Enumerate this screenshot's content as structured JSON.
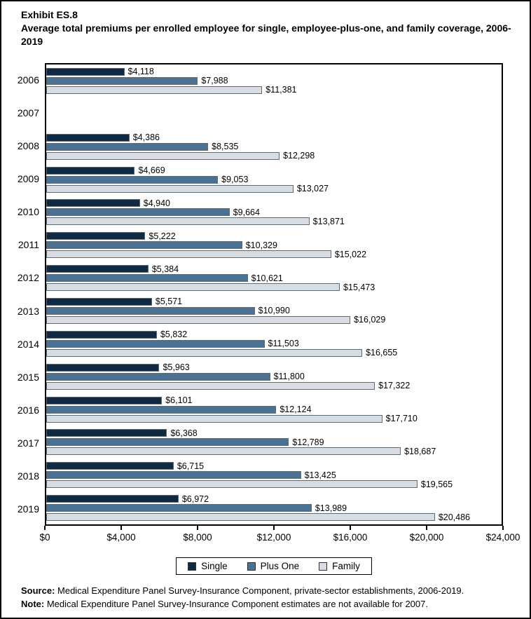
{
  "header": {
    "exhibit": "Exhibit ES.8",
    "title": "Average total premiums per enrolled employee for single, employee-plus-one, and family coverage, 2006-2019"
  },
  "chart_data": {
    "type": "bar",
    "orientation": "horizontal",
    "title": "Average total premiums per enrolled employee for single, employee-plus-one, and family coverage, 2006-2019",
    "categories": [
      "2006",
      "2007",
      "2008",
      "2009",
      "2010",
      "2011",
      "2012",
      "2013",
      "2014",
      "2015",
      "2016",
      "2017",
      "2018",
      "2019"
    ],
    "series": [
      {
        "name": "Single",
        "color": "#102a43",
        "values": [
          4118,
          null,
          4386,
          4669,
          4940,
          5222,
          5384,
          5571,
          5832,
          5963,
          6101,
          6368,
          6715,
          6972
        ]
      },
      {
        "name": "Plus One",
        "color": "#4a7191",
        "values": [
          7988,
          null,
          8535,
          9053,
          9664,
          10329,
          10621,
          10990,
          11503,
          11800,
          12124,
          12789,
          13425,
          13989
        ]
      },
      {
        "name": "Family",
        "color": "#d7dde3",
        "values": [
          11381,
          null,
          12298,
          13027,
          13871,
          15022,
          15473,
          16029,
          16655,
          17322,
          17710,
          18687,
          19565,
          20486
        ]
      }
    ],
    "xlim": [
      0,
      24000
    ],
    "x_ticks": [
      "$0",
      "$4,000",
      "$8,000",
      "$12,000",
      "$16,000",
      "$20,000",
      "$24,000"
    ],
    "value_label_prefix": "$",
    "grid": false,
    "legend_position": "bottom-center",
    "missing_data_years": [
      "2007"
    ]
  },
  "footer": {
    "source_label": "Source:",
    "source_text": " Medical Expenditure Panel Survey-Insurance Component, private-sector establishments, 2006-2019.",
    "note_label": "Note:",
    "note_text": " Medical Expenditure Panel Survey-Insurance Component estimates are not available for 2007."
  }
}
